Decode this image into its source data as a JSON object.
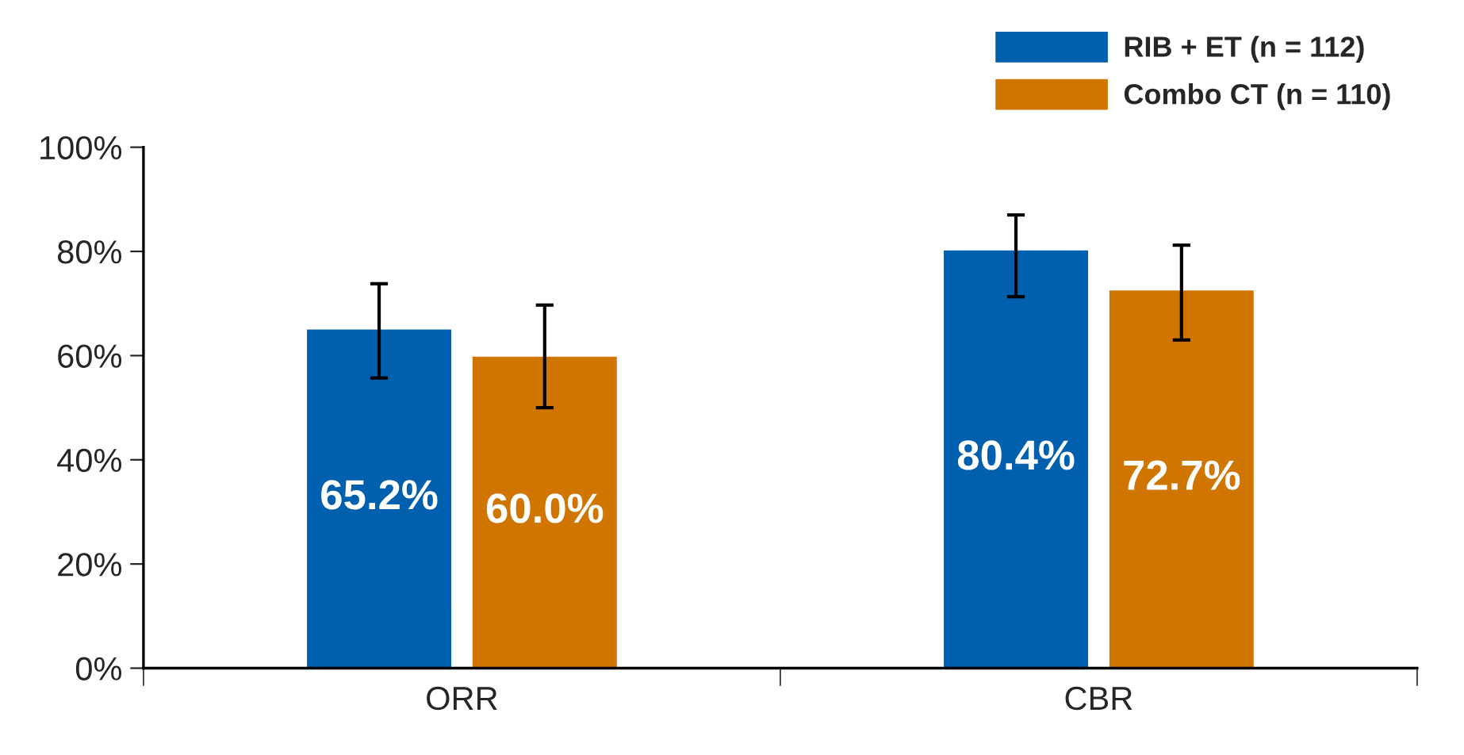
{
  "chart_data": {
    "type": "bar",
    "categories": [
      "ORR",
      "CBR"
    ],
    "series": [
      {
        "name": "RIB + ET (n = 112)",
        "color": "#0060ad",
        "values": [
          65.2,
          80.4
        ],
        "value_labels": [
          "65.2%",
          "80.4%"
        ],
        "errors": [
          [
            55.7,
            73.8
          ],
          [
            71.3,
            87.0
          ]
        ]
      },
      {
        "name": "Combo CT (n = 110)",
        "color": "#d07600",
        "values": [
          60.0,
          72.7
        ],
        "value_labels": [
          "60.0%",
          "72.7%"
        ],
        "errors": [
          [
            50.0,
            69.7
          ],
          [
            63.0,
            81.2
          ]
        ]
      }
    ],
    "ylim": [
      0,
      100
    ],
    "yticks": [
      {
        "value": 0,
        "label": "0%"
      },
      {
        "value": 20,
        "label": "20%"
      },
      {
        "value": 40,
        "label": "40%"
      },
      {
        "value": 60,
        "label": "60%"
      },
      {
        "value": 80,
        "label": "80%"
      },
      {
        "value": 100,
        "label": "100%"
      }
    ],
    "grid": false,
    "legend": "top right"
  }
}
